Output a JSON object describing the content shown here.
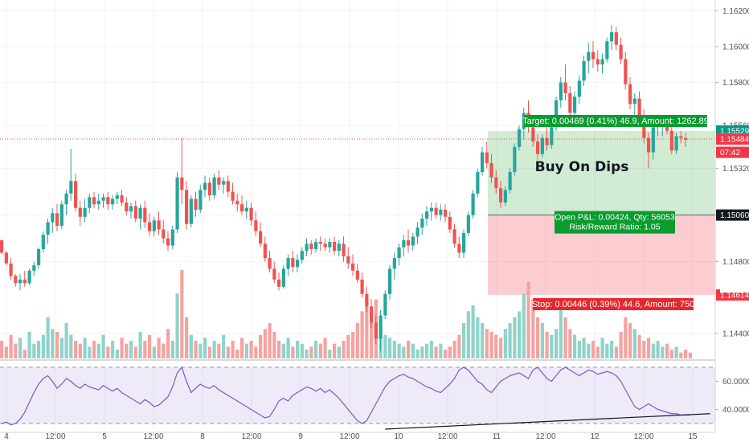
{
  "chart_data": {
    "type": "candlestick",
    "x_ticks": [
      "4",
      "12:00",
      "5",
      "12:00",
      "8",
      "12:00",
      "9",
      "12:00",
      "10",
      "12:00",
      "11",
      "12:00",
      "12",
      "12:00",
      "15"
    ],
    "price_axis": {
      "ticks": [
        "1.16200",
        "1.16000",
        "1.15800",
        "1.15560",
        "1.15320",
        "1.15060",
        "1.14800",
        "1.14400"
      ],
      "ylim": [
        1.1426,
        1.1626
      ]
    },
    "price_labels": [
      {
        "text": "1.15529",
        "value": 1.15529,
        "color": "#089981"
      },
      {
        "text": "1.15484",
        "value": 1.15484,
        "color": "#f23645"
      },
      {
        "text": "07:42",
        "value": 1.1541,
        "color": "#f23645"
      },
      {
        "text": "1.15060",
        "value": 1.1506,
        "color": "#131722"
      },
      {
        "text": "1.14614",
        "value": 1.14614,
        "color": "#f23645"
      }
    ],
    "annotations": {
      "title": "Buy On Dips",
      "target": "Target: 0.00469 (0.41%) 46.9, Amount: 1262.89",
      "pnl": "Open P&L: 0.00424, Qty: 56053",
      "rr": "Risk/Reward Ratio: 1.05",
      "stop": "Stop: 0.00446 (0.39%) 44.6, Amount: 750"
    },
    "position": {
      "entry": 1.1506,
      "target": 1.15529,
      "stop": 1.14614,
      "last": 1.15484
    },
    "rsi_axis": {
      "ticks": [
        "60.0000",
        "40.0000"
      ],
      "ylim": [
        26,
        74
      ]
    },
    "candles": [
      [
        1.1492,
        1.1492,
        1.1484,
        1.1485
      ],
      [
        1.1485,
        1.1486,
        1.1478,
        1.1479
      ],
      [
        1.1479,
        1.1482,
        1.147,
        1.1472
      ],
      [
        1.1472,
        1.1473,
        1.1466,
        1.1468
      ],
      [
        1.1468,
        1.1473,
        1.1464,
        1.147
      ],
      [
        1.147,
        1.1475,
        1.1466,
        1.1468
      ],
      [
        1.1468,
        1.1476,
        1.1467,
        1.1475
      ],
      [
        1.1475,
        1.148,
        1.1472,
        1.1478
      ],
      [
        1.1478,
        1.1488,
        1.1476,
        1.1487
      ],
      [
        1.1487,
        1.1497,
        1.1485,
        1.1495
      ],
      [
        1.1495,
        1.1504,
        1.149,
        1.1502
      ],
      [
        1.1502,
        1.151,
        1.1496,
        1.1507
      ],
      [
        1.1507,
        1.1512,
        1.1497,
        1.15
      ],
      [
        1.15,
        1.1514,
        1.1498,
        1.1512
      ],
      [
        1.1512,
        1.152,
        1.1506,
        1.1518
      ],
      [
        1.1518,
        1.1543,
        1.1514,
        1.1525
      ],
      [
        1.1525,
        1.1529,
        1.1508,
        1.151
      ],
      [
        1.151,
        1.1514,
        1.15,
        1.1505
      ],
      [
        1.1505,
        1.1515,
        1.1502,
        1.151
      ],
      [
        1.151,
        1.1518,
        1.1507,
        1.1516
      ],
      [
        1.1516,
        1.1519,
        1.151,
        1.1512
      ],
      [
        1.1512,
        1.1518,
        1.1509,
        1.1514
      ],
      [
        1.1514,
        1.1518,
        1.151,
        1.1516
      ],
      [
        1.1516,
        1.1519,
        1.1509,
        1.1512
      ],
      [
        1.1512,
        1.1517,
        1.1509,
        1.1515
      ],
      [
        1.1515,
        1.1519,
        1.1512,
        1.1517
      ],
      [
        1.1517,
        1.152,
        1.1511,
        1.1513
      ],
      [
        1.1513,
        1.1516,
        1.1506,
        1.1508
      ],
      [
        1.1508,
        1.1513,
        1.1504,
        1.1511
      ],
      [
        1.1511,
        1.1514,
        1.1502,
        1.1504
      ],
      [
        1.1504,
        1.1512,
        1.1498,
        1.151
      ],
      [
        1.151,
        1.1514,
        1.1499,
        1.1502
      ],
      [
        1.1502,
        1.1507,
        1.1494,
        1.1497
      ],
      [
        1.1497,
        1.1505,
        1.1494,
        1.1503
      ],
      [
        1.1503,
        1.1508,
        1.1495,
        1.1498
      ],
      [
        1.1498,
        1.1503,
        1.149,
        1.1493
      ],
      [
        1.1493,
        1.1497,
        1.1486,
        1.1489
      ],
      [
        1.1489,
        1.15,
        1.1487,
        1.1498
      ],
      [
        1.1498,
        1.153,
        1.1496,
        1.1527
      ],
      [
        1.1527,
        1.1549,
        1.1512,
        1.152
      ],
      [
        1.152,
        1.1525,
        1.1498,
        1.1501
      ],
      [
        1.1501,
        1.1517,
        1.1499,
        1.1515
      ],
      [
        1.1515,
        1.1519,
        1.1505,
        1.1509
      ],
      [
        1.1509,
        1.1523,
        1.1507,
        1.152
      ],
      [
        1.152,
        1.1528,
        1.1516,
        1.1524
      ],
      [
        1.1524,
        1.1527,
        1.1514,
        1.1517
      ],
      [
        1.1517,
        1.1529,
        1.1515,
        1.1527
      ],
      [
        1.1527,
        1.1531,
        1.152,
        1.1523
      ],
      [
        1.1523,
        1.1527,
        1.1518,
        1.1525
      ],
      [
        1.1525,
        1.1528,
        1.1516,
        1.1519
      ],
      [
        1.1519,
        1.1524,
        1.1512,
        1.1514
      ],
      [
        1.1514,
        1.1518,
        1.1508,
        1.1512
      ],
      [
        1.1512,
        1.1517,
        1.1506,
        1.1508
      ],
      [
        1.1508,
        1.1514,
        1.1504,
        1.151
      ],
      [
        1.151,
        1.1513,
        1.15,
        1.1503
      ],
      [
        1.1503,
        1.1508,
        1.1494,
        1.1497
      ],
      [
        1.1497,
        1.1502,
        1.1488,
        1.149
      ],
      [
        1.149,
        1.1494,
        1.148,
        1.1482
      ],
      [
        1.1482,
        1.1486,
        1.1474,
        1.1476
      ],
      [
        1.1476,
        1.148,
        1.1468,
        1.147
      ],
      [
        1.147,
        1.1474,
        1.1464,
        1.1466
      ],
      [
        1.1466,
        1.1478,
        1.1465,
        1.1476
      ],
      [
        1.1476,
        1.1484,
        1.1472,
        1.1482
      ],
      [
        1.1482,
        1.1486,
        1.1474,
        1.1477
      ],
      [
        1.1477,
        1.1484,
        1.1474,
        1.1481
      ],
      [
        1.1481,
        1.1488,
        1.1479,
        1.1486
      ],
      [
        1.1486,
        1.1493,
        1.1483,
        1.149
      ],
      [
        1.149,
        1.1492,
        1.1484,
        1.1487
      ],
      [
        1.1487,
        1.1493,
        1.1485,
        1.1491
      ],
      [
        1.1491,
        1.1494,
        1.1486,
        1.149
      ],
      [
        1.149,
        1.1493,
        1.1486,
        1.1488
      ],
      [
        1.1488,
        1.1493,
        1.1485,
        1.1491
      ],
      [
        1.1491,
        1.1494,
        1.1484,
        1.1486
      ],
      [
        1.1486,
        1.1492,
        1.1483,
        1.149
      ],
      [
        1.149,
        1.1494,
        1.148,
        1.1483
      ],
      [
        1.1483,
        1.1488,
        1.1476,
        1.1479
      ],
      [
        1.1479,
        1.1484,
        1.1472,
        1.1475
      ],
      [
        1.1475,
        1.1479,
        1.1468,
        1.147
      ],
      [
        1.147,
        1.1474,
        1.146,
        1.1462
      ],
      [
        1.1462,
        1.1466,
        1.1452,
        1.1455
      ],
      [
        1.1455,
        1.1459,
        1.1443,
        1.1446
      ],
      [
        1.1446,
        1.145,
        1.1434,
        1.1437
      ],
      [
        1.1437,
        1.1453,
        1.143,
        1.145
      ],
      [
        1.145,
        1.1464,
        1.1448,
        1.1462
      ],
      [
        1.1462,
        1.1478,
        1.1459,
        1.1476
      ],
      [
        1.1476,
        1.1485,
        1.147,
        1.1482
      ],
      [
        1.1482,
        1.149,
        1.1478,
        1.1488
      ],
      [
        1.1488,
        1.1495,
        1.1483,
        1.1492
      ],
      [
        1.1492,
        1.1498,
        1.1485,
        1.1489
      ],
      [
        1.1489,
        1.1496,
        1.1486,
        1.1494
      ],
      [
        1.1494,
        1.1502,
        1.149,
        1.1499
      ],
      [
        1.1499,
        1.1507,
        1.1495,
        1.1504
      ],
      [
        1.1504,
        1.1511,
        1.15,
        1.1508
      ],
      [
        1.1508,
        1.1513,
        1.1503,
        1.151
      ],
      [
        1.151,
        1.1513,
        1.1504,
        1.1506
      ],
      [
        1.1506,
        1.1512,
        1.1503,
        1.1509
      ],
      [
        1.1509,
        1.1512,
        1.1502,
        1.1505
      ],
      [
        1.1505,
        1.1508,
        1.1496,
        1.1498
      ],
      [
        1.1498,
        1.1501,
        1.1488,
        1.149
      ],
      [
        1.149,
        1.1494,
        1.1482,
        1.1485
      ],
      [
        1.1485,
        1.1498,
        1.1482,
        1.1496
      ],
      [
        1.1496,
        1.1508,
        1.1494,
        1.1506
      ],
      [
        1.1506,
        1.152,
        1.1504,
        1.1518
      ],
      [
        1.1518,
        1.1532,
        1.1516,
        1.153
      ],
      [
        1.153,
        1.1544,
        1.1528,
        1.1541
      ],
      [
        1.1541,
        1.1547,
        1.1532,
        1.1535
      ],
      [
        1.1535,
        1.154,
        1.1524,
        1.1527
      ],
      [
        1.1527,
        1.1531,
        1.1518,
        1.1521
      ],
      [
        1.1521,
        1.1525,
        1.151,
        1.1513
      ],
      [
        1.1513,
        1.1522,
        1.1511,
        1.152
      ],
      [
        1.152,
        1.1532,
        1.1518,
        1.153
      ],
      [
        1.153,
        1.1546,
        1.1528,
        1.1544
      ],
      [
        1.1544,
        1.1556,
        1.1542,
        1.1554
      ],
      [
        1.1554,
        1.1566,
        1.1548,
        1.1563
      ],
      [
        1.1563,
        1.157,
        1.1552,
        1.1555
      ],
      [
        1.1555,
        1.156,
        1.1544,
        1.1547
      ],
      [
        1.1547,
        1.1551,
        1.1537,
        1.154
      ],
      [
        1.154,
        1.1551,
        1.1538,
        1.1549
      ],
      [
        1.1549,
        1.1558,
        1.1542,
        1.1545
      ],
      [
        1.1545,
        1.1557,
        1.1543,
        1.1555
      ],
      [
        1.1555,
        1.1572,
        1.1553,
        1.157
      ],
      [
        1.157,
        1.1583,
        1.1566,
        1.158
      ],
      [
        1.158,
        1.159,
        1.157,
        1.1574
      ],
      [
        1.1574,
        1.1578,
        1.156,
        1.1563
      ],
      [
        1.1563,
        1.1575,
        1.1558,
        1.1572
      ],
      [
        1.1572,
        1.1584,
        1.1568,
        1.1581
      ],
      [
        1.1581,
        1.1595,
        1.1578,
        1.1592
      ],
      [
        1.1592,
        1.1602,
        1.1585,
        1.1597
      ],
      [
        1.1597,
        1.1603,
        1.1588,
        1.1593
      ],
      [
        1.1593,
        1.1598,
        1.1586,
        1.159
      ],
      [
        1.159,
        1.1596,
        1.1585,
        1.1593
      ],
      [
        1.1593,
        1.1605,
        1.1591,
        1.1603
      ],
      [
        1.1603,
        1.1612,
        1.1598,
        1.1608
      ],
      [
        1.1608,
        1.1611,
        1.1598,
        1.1601
      ],
      [
        1.1601,
        1.1605,
        1.159,
        1.1593
      ],
      [
        1.1593,
        1.1597,
        1.1576,
        1.1579
      ],
      [
        1.1579,
        1.1583,
        1.1565,
        1.1568
      ],
      [
        1.1568,
        1.1574,
        1.1562,
        1.1571
      ],
      [
        1.1571,
        1.1575,
        1.1558,
        1.1561
      ],
      [
        1.1561,
        1.1565,
        1.1546,
        1.1549
      ],
      [
        1.1549,
        1.1552,
        1.1532,
        1.1541
      ],
      [
        1.1541,
        1.1558,
        1.1537,
        1.1555
      ],
      [
        1.1555,
        1.1562,
        1.155,
        1.1556
      ],
      [
        1.1556,
        1.1561,
        1.155,
        1.1558
      ],
      [
        1.1558,
        1.1562,
        1.1551,
        1.1553
      ],
      [
        1.1553,
        1.156,
        1.154,
        1.1542
      ],
      [
        1.1542,
        1.1552,
        1.154,
        1.155
      ],
      [
        1.155,
        1.1553,
        1.1546,
        1.1549
      ],
      [
        1.1549,
        1.1552,
        1.1544,
        1.1548
      ]
    ],
    "volume": [
      6,
      4,
      8,
      5,
      7,
      3,
      9,
      5,
      6,
      8,
      14,
      10,
      9,
      7,
      12,
      8,
      6,
      5,
      7,
      4,
      6,
      5,
      8,
      4,
      6,
      3,
      7,
      5,
      6,
      4,
      9,
      6,
      8,
      4,
      7,
      5,
      10,
      6,
      22,
      30,
      14,
      8,
      6,
      5,
      7,
      4,
      6,
      5,
      8,
      4,
      6,
      3,
      7,
      5,
      6,
      4,
      8,
      10,
      12,
      9,
      6,
      5,
      7,
      4,
      6,
      5,
      3,
      4,
      6,
      5,
      7,
      3,
      5,
      4,
      6,
      8,
      9,
      12,
      16,
      18,
      14,
      20,
      10,
      8,
      7,
      6,
      5,
      4,
      6,
      5,
      3,
      4,
      5,
      6,
      4,
      5,
      3,
      4,
      6,
      8,
      12,
      16,
      18,
      14,
      12,
      10,
      9,
      8,
      7,
      10,
      12,
      14,
      16,
      22,
      26,
      20,
      14,
      12,
      9,
      8,
      10,
      18,
      14,
      10,
      8,
      6,
      7,
      5,
      6,
      4,
      7,
      5,
      6,
      4,
      9,
      14,
      12,
      10,
      8,
      6,
      7,
      5,
      6,
      4,
      5,
      3,
      4,
      2,
      3,
      2
    ],
    "rsi": [
      30,
      31,
      29,
      30,
      33,
      38,
      45,
      52,
      58,
      62,
      64,
      60,
      55,
      58,
      62,
      60,
      57,
      55,
      58,
      56,
      55,
      54,
      57,
      55,
      53,
      55,
      52,
      50,
      48,
      46,
      44,
      47,
      45,
      42,
      43,
      46,
      49,
      56,
      66,
      70,
      60,
      52,
      55,
      58,
      56,
      55,
      57,
      54,
      52,
      50,
      48,
      46,
      44,
      42,
      40,
      38,
      36,
      34,
      35,
      40,
      46,
      48,
      46,
      50,
      52,
      54,
      56,
      55,
      53,
      55,
      52,
      54,
      51,
      48,
      44,
      40,
      36,
      32,
      30,
      32,
      38,
      44,
      50,
      56,
      60,
      62,
      64,
      65,
      63,
      62,
      60,
      58,
      56,
      55,
      53,
      52,
      55,
      58,
      62,
      68,
      70,
      68,
      64,
      60,
      58,
      54,
      52,
      56,
      60,
      62,
      64,
      65,
      66,
      64,
      62,
      68,
      70,
      66,
      62,
      60,
      64,
      68,
      70,
      68,
      66,
      64,
      66,
      68,
      67,
      65,
      66,
      67,
      66,
      64,
      60,
      54,
      48,
      42,
      40,
      42,
      44,
      42,
      40,
      39,
      38,
      37,
      37,
      36,
      36,
      36
    ],
    "trendline": {
      "start": [
        83,
        26
      ],
      "end": [
        149,
        37
      ]
    }
  }
}
